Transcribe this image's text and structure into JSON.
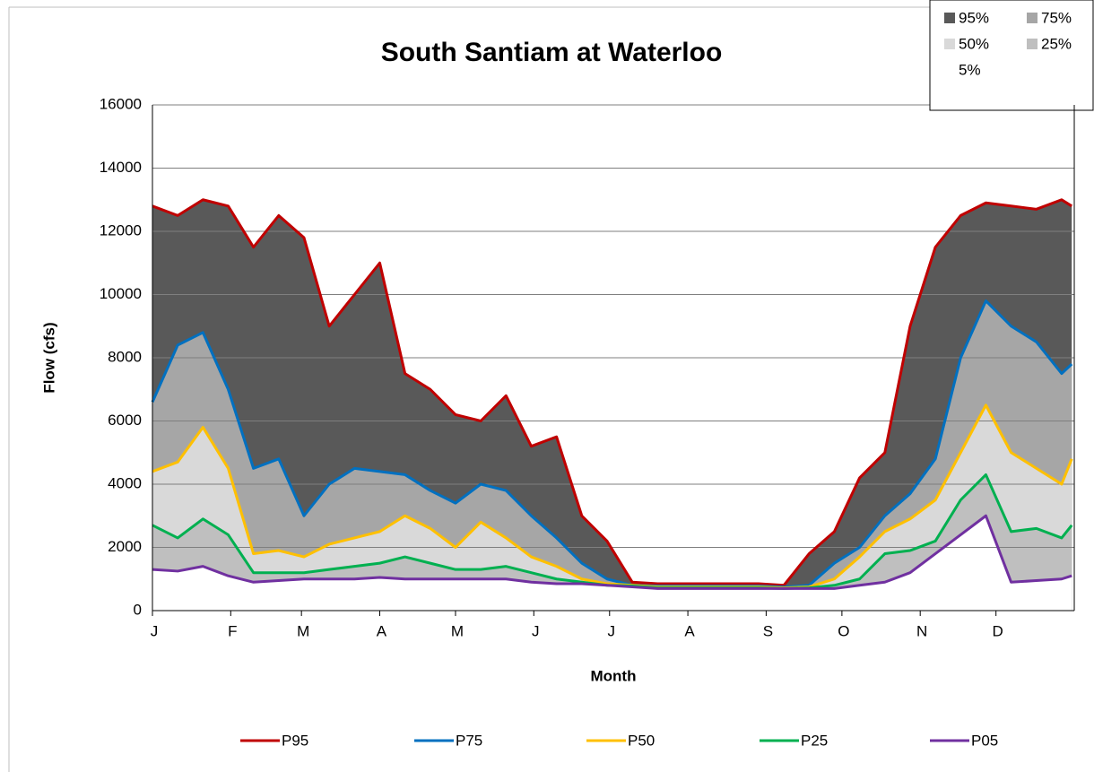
{
  "chart_data": {
    "type": "area-line",
    "title": "South Santiam at Waterloo",
    "ylabel": "Flow (cfs)",
    "xlabel": "Month",
    "xlim": [
      1,
      366
    ],
    "xticks": [
      {
        "value": 1,
        "label": "J"
      },
      {
        "value": 32,
        "label": "F"
      },
      {
        "value": 60,
        "label": "M"
      },
      {
        "value": 91,
        "label": "A"
      },
      {
        "value": 121,
        "label": "M"
      },
      {
        "value": 152,
        "label": "J"
      },
      {
        "value": 182,
        "label": "J"
      },
      {
        "value": 213,
        "label": "A"
      },
      {
        "value": 244,
        "label": "S"
      },
      {
        "value": 274,
        "label": "O"
      },
      {
        "value": 305,
        "label": "N"
      },
      {
        "value": 335,
        "label": "D"
      }
    ],
    "ylim": [
      0,
      16000
    ],
    "yticks": [
      0,
      2000,
      4000,
      6000,
      8000,
      10000,
      12000,
      14000,
      16000
    ],
    "grid": true,
    "x": [
      1,
      11,
      21,
      31,
      41,
      51,
      61,
      71,
      81,
      91,
      101,
      111,
      121,
      131,
      141,
      151,
      161,
      171,
      181,
      191,
      201,
      211,
      221,
      231,
      241,
      251,
      261,
      271,
      281,
      291,
      301,
      311,
      321,
      331,
      341,
      351,
      361,
      365
    ],
    "series": [
      {
        "name": "P95",
        "area_name": "95%",
        "color": "#c00000",
        "fill": "#595959",
        "values": [
          12800,
          12500,
          13000,
          12800,
          11500,
          12500,
          11800,
          9000,
          10000,
          11000,
          7500,
          7000,
          6200,
          6000,
          6800,
          5200,
          5500,
          3000,
          2200,
          900,
          850,
          850,
          850,
          850,
          850,
          800,
          1800,
          2500,
          4200,
          5000,
          9000,
          11500,
          12500,
          12900,
          12800,
          12700,
          13000,
          12800
        ]
      },
      {
        "name": "P75",
        "area_name": "75%",
        "color": "#0070c0",
        "fill": "#a6a6a6",
        "values": [
          6600,
          8400,
          8800,
          7000,
          4500,
          4800,
          3000,
          4000,
          4500,
          4400,
          4300,
          3800,
          3400,
          4000,
          3800,
          3000,
          2300,
          1500,
          1000,
          800,
          780,
          780,
          780,
          780,
          780,
          750,
          800,
          1500,
          2000,
          3000,
          3700,
          4800,
          8000,
          9800,
          9000,
          8500,
          7500,
          7800
        ]
      },
      {
        "name": "P50",
        "area_name": "50%",
        "color": "#ffc000",
        "fill": "#d9d9d9",
        "values": [
          4400,
          4700,
          5800,
          4500,
          1800,
          1900,
          1700,
          2100,
          2300,
          2500,
          3000,
          2600,
          2000,
          2800,
          2300,
          1700,
          1400,
          1000,
          850,
          800,
          750,
          750,
          750,
          750,
          750,
          720,
          750,
          1000,
          1700,
          2500,
          2900,
          3500,
          5000,
          6500,
          5000,
          4500,
          4000,
          4800
        ]
      },
      {
        "name": "P25",
        "area_name": "25%",
        "color": "#00b050",
        "fill": "#bfbfbf",
        "values": [
          2700,
          2300,
          2900,
          2400,
          1200,
          1200,
          1200,
          1300,
          1400,
          1500,
          1700,
          1500,
          1300,
          1300,
          1400,
          1200,
          1000,
          900,
          800,
          780,
          720,
          720,
          720,
          720,
          720,
          700,
          720,
          800,
          1000,
          1800,
          1900,
          2200,
          3500,
          4300,
          2500,
          2600,
          2300,
          2700
        ]
      },
      {
        "name": "P05",
        "area_name": "5%",
        "color": "#7030a0",
        "fill": "#ffffff",
        "values": [
          1300,
          1250,
          1400,
          1100,
          900,
          950,
          1000,
          1000,
          1000,
          1050,
          1000,
          1000,
          1000,
          1000,
          1000,
          900,
          850,
          850,
          800,
          750,
          700,
          700,
          700,
          700,
          700,
          700,
          700,
          700,
          800,
          900,
          1200,
          1800,
          2400,
          3000,
          900,
          950,
          1000,
          1100
        ]
      }
    ]
  }
}
